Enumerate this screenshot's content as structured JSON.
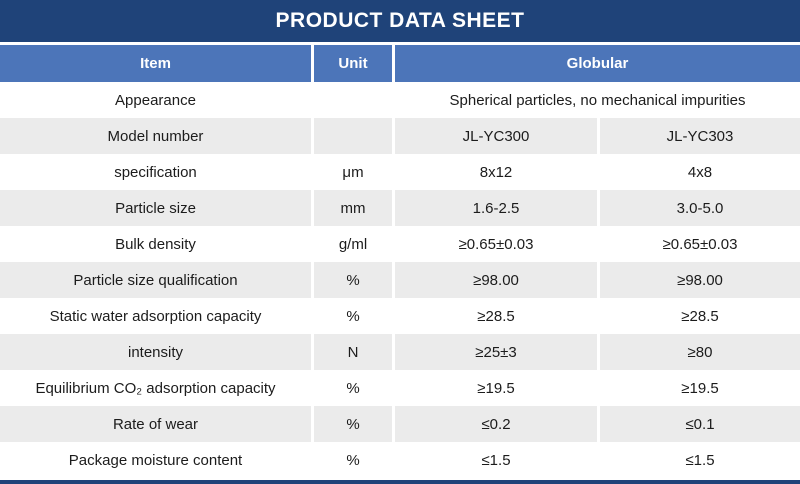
{
  "title": "PRODUCT DATA SHEET",
  "colors": {
    "title_bar_bg": "#1f4379",
    "header_row_bg": "#4c75b9",
    "alt_row_bg": "#ebebeb",
    "header_text": "#ffffff",
    "body_text": "#1c1c1c"
  },
  "table": {
    "columns": {
      "item": "Item",
      "unit": "Unit",
      "group": "Globular"
    },
    "rows": [
      {
        "item": "Appearance",
        "unit": "",
        "merged": "Spherical particles, no mechanical impurities"
      },
      {
        "item": "Model number",
        "unit": "",
        "values": [
          "JL-YC300",
          "JL-YC303"
        ]
      },
      {
        "item": "specification",
        "unit": "μm",
        "values": [
          "8x12",
          "4x8"
        ]
      },
      {
        "item": "Particle size",
        "unit": "mm",
        "values": [
          "1.6-2.5",
          "3.0-5.0"
        ]
      },
      {
        "item": "Bulk density",
        "unit": "g/ml",
        "values": [
          "≥0.65±0.03",
          "≥0.65±0.03"
        ]
      },
      {
        "item": "Particle size qualification",
        "unit": "%",
        "values": [
          "≥98.00",
          "≥98.00"
        ]
      },
      {
        "item": "Static water adsorption capacity",
        "unit": "%",
        "values": [
          "≥28.5",
          "≥28.5"
        ]
      },
      {
        "item": "intensity",
        "unit": "N",
        "values": [
          "≥25±3",
          "≥80"
        ]
      },
      {
        "item": "Equilibrium CO₂ adsorption capacity",
        "unit": "%",
        "values": [
          "≥19.5",
          "≥19.5"
        ]
      },
      {
        "item": "Rate of wear",
        "unit": "%",
        "values": [
          "≤0.2",
          "≤0.1"
        ]
      },
      {
        "item": "Package moisture content",
        "unit": "%",
        "values": [
          "≤1.5",
          "≤1.5"
        ]
      }
    ]
  }
}
